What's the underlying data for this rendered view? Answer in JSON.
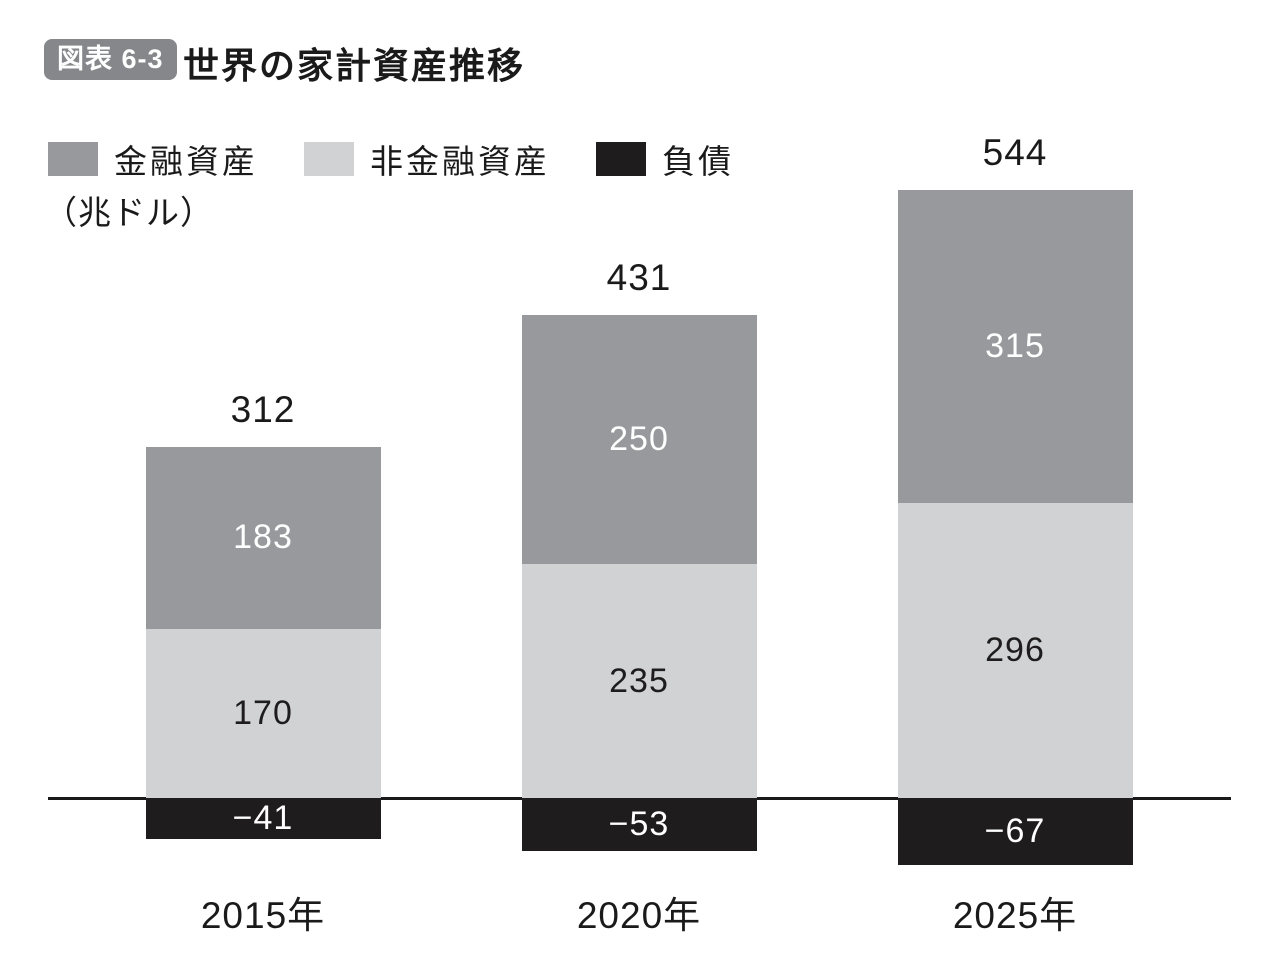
{
  "figure": {
    "badge": "図表 6-3",
    "title": "世界の家計資産推移",
    "unit": "（兆ドル）"
  },
  "legend": [
    {
      "key": "financial",
      "label": "金融資産",
      "color": "#97999c"
    },
    {
      "key": "nonfinancial",
      "label": "非金融資産",
      "color": "#d0d2d3"
    },
    {
      "key": "debt",
      "label": "負債",
      "color": "#1e1c1c"
    }
  ],
  "chart_data": {
    "type": "bar",
    "stacked": true,
    "title": "世界の家計資産推移",
    "unit_label": "（兆ドル）",
    "categories": [
      "2015年",
      "2020年",
      "2025年"
    ],
    "category_keys": [
      "2015",
      "2020",
      "2025"
    ],
    "series": [
      {
        "key": "financial",
        "name": "金融資産",
        "values": [
          183,
          250,
          315
        ],
        "color": "#97999c",
        "label_color": "#ffffff"
      },
      {
        "key": "nonfinancial",
        "name": "非金融資産",
        "values": [
          170,
          235,
          296
        ],
        "color": "#d0d2d3",
        "label_color": "#1e1c1c"
      },
      {
        "key": "debt",
        "name": "負債",
        "values": [
          -41,
          -53,
          -67
        ],
        "color": "#1e1c1c",
        "label_color": "#ffffff"
      }
    ],
    "totals": [
      312,
      431,
      544
    ],
    "baseline": 0,
    "ylim": [
      -70,
      615
    ],
    "grid": false,
    "legend_position": "top-left",
    "axis_line_color": "#1a1a1a"
  }
}
